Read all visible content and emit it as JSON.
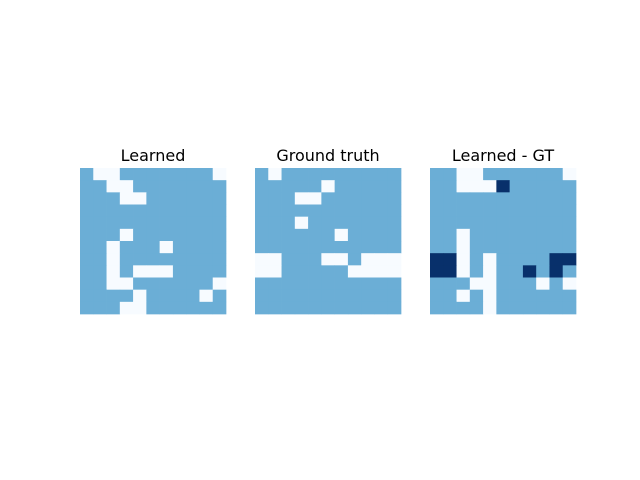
{
  "chart_data": [
    {
      "type": "heatmap",
      "title": "Learned",
      "colormap": "Blues",
      "axes": "off",
      "grid": false,
      "values": [
        [
          1,
          0,
          0,
          1,
          1,
          1,
          1,
          1,
          1,
          1,
          0
        ],
        [
          1,
          1,
          0,
          0,
          1,
          1,
          1,
          1,
          1,
          1,
          1
        ],
        [
          1,
          1,
          1,
          0,
          0,
          1,
          1,
          1,
          1,
          1,
          1
        ],
        [
          1,
          1,
          1,
          1,
          1,
          1,
          1,
          1,
          1,
          1,
          1
        ],
        [
          1,
          1,
          1,
          1,
          1,
          1,
          1,
          1,
          1,
          1,
          1
        ],
        [
          1,
          1,
          1,
          0,
          1,
          1,
          1,
          1,
          1,
          1,
          1
        ],
        [
          1,
          1,
          0,
          1,
          1,
          1,
          0,
          1,
          1,
          1,
          1
        ],
        [
          1,
          1,
          0,
          1,
          1,
          1,
          1,
          1,
          1,
          1,
          1
        ],
        [
          1,
          1,
          0,
          1,
          0,
          0,
          0,
          1,
          1,
          1,
          1
        ],
        [
          1,
          1,
          0,
          0,
          1,
          1,
          1,
          1,
          1,
          1,
          0
        ],
        [
          1,
          1,
          1,
          1,
          0,
          1,
          1,
          1,
          1,
          0,
          1
        ],
        [
          1,
          1,
          1,
          0,
          0,
          1,
          1,
          1,
          1,
          1,
          1
        ]
      ]
    },
    {
      "type": "heatmap",
      "title": "Ground truth",
      "colormap": "Blues",
      "axes": "off",
      "grid": false,
      "values": [
        [
          1,
          0,
          1,
          1,
          1,
          1,
          1,
          1,
          1,
          1,
          1
        ],
        [
          1,
          1,
          1,
          1,
          1,
          0,
          1,
          1,
          1,
          1,
          1
        ],
        [
          1,
          1,
          1,
          0,
          0,
          1,
          1,
          1,
          1,
          1,
          1
        ],
        [
          1,
          1,
          1,
          1,
          1,
          1,
          1,
          1,
          1,
          1,
          1
        ],
        [
          1,
          1,
          1,
          0,
          1,
          1,
          1,
          1,
          1,
          1,
          1
        ],
        [
          1,
          1,
          1,
          1,
          1,
          1,
          0,
          1,
          1,
          1,
          1
        ],
        [
          1,
          1,
          1,
          1,
          1,
          1,
          1,
          1,
          1,
          1,
          1
        ],
        [
          0,
          0,
          1,
          1,
          1,
          0,
          0,
          1,
          0,
          0,
          0
        ],
        [
          0,
          0,
          1,
          1,
          1,
          1,
          1,
          0,
          0,
          0,
          0
        ],
        [
          1,
          1,
          1,
          1,
          1,
          1,
          1,
          1,
          1,
          1,
          1
        ],
        [
          1,
          1,
          1,
          1,
          1,
          1,
          1,
          1,
          1,
          1,
          1
        ],
        [
          1,
          1,
          1,
          1,
          1,
          1,
          1,
          1,
          1,
          1,
          1
        ]
      ]
    },
    {
      "type": "heatmap",
      "title": "Learned - GT",
      "colormap": "Blues",
      "axes": "off",
      "grid": false,
      "values": [
        [
          1,
          1,
          0,
          0,
          1,
          1,
          1,
          1,
          1,
          1,
          0
        ],
        [
          1,
          1,
          0,
          0,
          0,
          2,
          1,
          1,
          1,
          1,
          1
        ],
        [
          1,
          1,
          1,
          1,
          1,
          1,
          1,
          1,
          1,
          1,
          1
        ],
        [
          1,
          1,
          1,
          1,
          1,
          1,
          1,
          1,
          1,
          1,
          1
        ],
        [
          1,
          1,
          1,
          1,
          1,
          1,
          1,
          1,
          1,
          1,
          1
        ],
        [
          1,
          1,
          0,
          1,
          1,
          1,
          1,
          1,
          1,
          1,
          1
        ],
        [
          1,
          1,
          0,
          1,
          1,
          1,
          1,
          1,
          1,
          1,
          1
        ],
        [
          2,
          2,
          0,
          1,
          0,
          1,
          1,
          1,
          1,
          2,
          2
        ],
        [
          2,
          2,
          0,
          1,
          0,
          1,
          1,
          2,
          1,
          2,
          1
        ],
        [
          1,
          1,
          1,
          0,
          0,
          1,
          1,
          1,
          0,
          1,
          0
        ],
        [
          1,
          1,
          0,
          1,
          0,
          1,
          1,
          1,
          1,
          1,
          1
        ],
        [
          1,
          1,
          1,
          1,
          0,
          1,
          1,
          1,
          1,
          1,
          1
        ]
      ]
    }
  ],
  "colors": {
    "level_0": "#f7fbff",
    "level_1": "#6baed6",
    "level_2": "#08306b",
    "text": "#000000"
  }
}
